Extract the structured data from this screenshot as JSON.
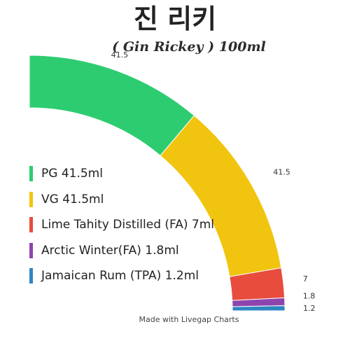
{
  "chart_data": {
    "type": "pie",
    "title": "진 리키",
    "subtitle": "( Gin Rickey ) 100ml",
    "categories": [
      "PG",
      "VG",
      "Lime Tahity Distilled (FA)",
      "Arctic Winter(FA)",
      "Jamaican Rum (TPA)"
    ],
    "values": [
      41.5,
      41.5,
      7,
      1.8,
      1.2
    ],
    "value_labels": [
      "41.5",
      "41.5",
      "7",
      "1.8",
      "1.2"
    ],
    "colors": [
      "#2ecc71",
      "#f1c40f",
      "#e74c3c",
      "#8e44ad",
      "#2e86c1"
    ],
    "legend": [
      "PG 41.5ml",
      "VG 41.5ml",
      "Lime Tahity Distilled (FA) 7ml",
      "Arctic Winter(FA) 1.8ml",
      "Jamaican Rum (TPA) 1.2ml"
    ],
    "legend_position": "left",
    "footer": "Made with Livegap Charts"
  }
}
